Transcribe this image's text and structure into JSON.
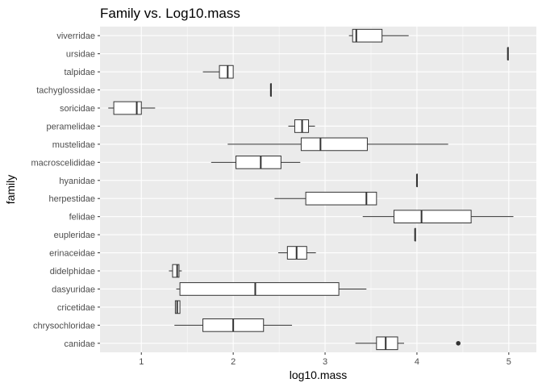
{
  "chart_data": {
    "type": "boxplot",
    "title": "Family vs. Log10.mass",
    "xlabel": "log10.mass",
    "ylabel": "family",
    "xlim": [
      0.55,
      5.3
    ],
    "xticks": [
      1,
      2,
      3,
      4,
      5
    ],
    "grid": true,
    "legend": "none",
    "categories": [
      "canidae",
      "chrysochloridae",
      "cricetidae",
      "dasyuridae",
      "didelphidae",
      "erinaceidae",
      "eupleridae",
      "felidae",
      "herpestidae",
      "hyanidae",
      "macroscelididae",
      "mustelidae",
      "peramelidae",
      "soricidae",
      "tachyglossidae",
      "talpidae",
      "ursidae",
      "viverridae"
    ],
    "boxes": [
      {
        "family": "canidae",
        "min": 3.33,
        "q1": 3.56,
        "median": 3.66,
        "q3": 3.79,
        "max": 3.86,
        "outliers": [
          4.45
        ]
      },
      {
        "family": "chrysochloridae",
        "min": 1.36,
        "q1": 1.67,
        "median": 2.0,
        "q3": 2.33,
        "max": 2.64,
        "outliers": []
      },
      {
        "family": "cricetidae",
        "min": 1.37,
        "q1": 1.37,
        "median": 1.39,
        "q3": 1.42,
        "max": 1.42,
        "outliers": []
      },
      {
        "family": "dasyuridae",
        "min": 1.38,
        "q1": 1.42,
        "median": 2.24,
        "q3": 3.15,
        "max": 3.45,
        "outliers": []
      },
      {
        "family": "didelphidae",
        "min": 1.3,
        "q1": 1.34,
        "median": 1.39,
        "q3": 1.41,
        "max": 1.44,
        "outliers": []
      },
      {
        "family": "erinaceidae",
        "min": 2.49,
        "q1": 2.59,
        "median": 2.69,
        "q3": 2.8,
        "max": 2.9,
        "outliers": []
      },
      {
        "family": "eupleridae",
        "min": 3.98,
        "q1": 3.98,
        "median": 3.98,
        "q3": 3.98,
        "max": 3.98,
        "outliers": []
      },
      {
        "family": "felidae",
        "min": 3.41,
        "q1": 3.75,
        "median": 4.05,
        "q3": 4.59,
        "max": 5.05,
        "outliers": []
      },
      {
        "family": "herpestidae",
        "min": 2.45,
        "q1": 2.79,
        "median": 3.45,
        "q3": 3.56,
        "max": 3.56,
        "outliers": []
      },
      {
        "family": "hyanidae",
        "min": 4.0,
        "q1": 4.0,
        "median": 4.0,
        "q3": 4.0,
        "max": 4.0,
        "outliers": []
      },
      {
        "family": "macroscelididae",
        "min": 1.76,
        "q1": 2.03,
        "median": 2.3,
        "q3": 2.52,
        "max": 2.73,
        "outliers": []
      },
      {
        "family": "mustelidae",
        "min": 1.94,
        "q1": 2.74,
        "median": 2.95,
        "q3": 3.46,
        "max": 4.34,
        "outliers": []
      },
      {
        "family": "peramelidae",
        "min": 2.6,
        "q1": 2.67,
        "median": 2.75,
        "q3": 2.82,
        "max": 2.89,
        "outliers": []
      },
      {
        "family": "soricidae",
        "min": 0.64,
        "q1": 0.7,
        "median": 0.95,
        "q3": 1.0,
        "max": 1.15,
        "outliers": []
      },
      {
        "family": "tachyglossidae",
        "min": 2.41,
        "q1": 2.41,
        "median": 2.41,
        "q3": 2.41,
        "max": 2.41,
        "outliers": []
      },
      {
        "family": "talpidae",
        "min": 1.67,
        "q1": 1.85,
        "median": 1.94,
        "q3": 2.0,
        "max": 2.0,
        "outliers": []
      },
      {
        "family": "ursidae",
        "min": 4.99,
        "q1": 4.99,
        "median": 4.99,
        "q3": 4.99,
        "max": 4.99,
        "outliers": []
      },
      {
        "family": "viverridae",
        "min": 3.26,
        "q1": 3.3,
        "median": 3.34,
        "q3": 3.62,
        "max": 3.91,
        "outliers": []
      }
    ]
  }
}
